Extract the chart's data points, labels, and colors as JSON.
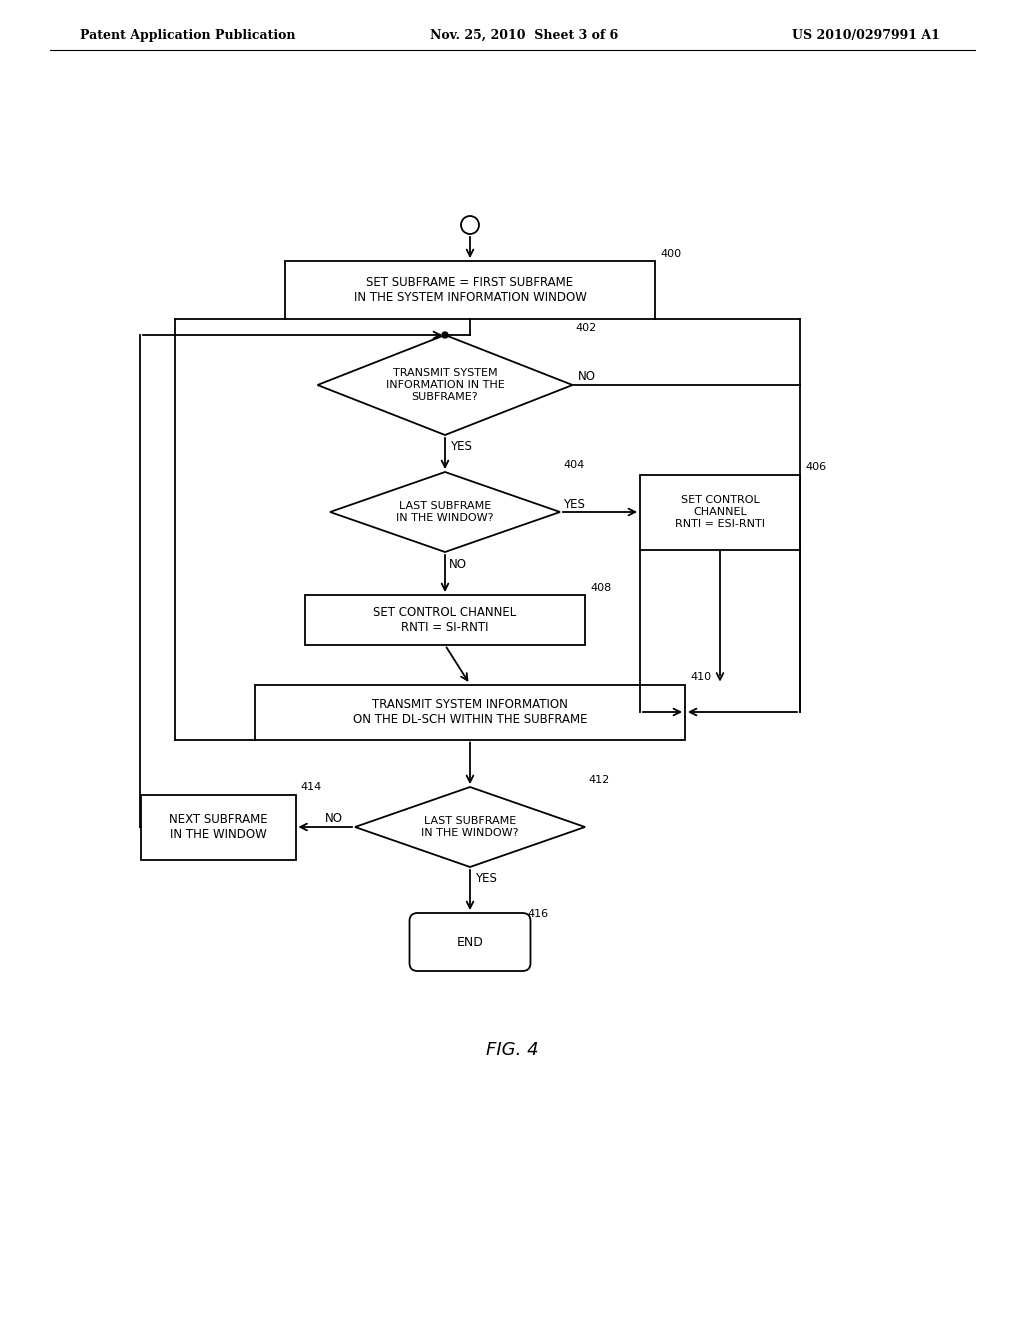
{
  "bg_color": "#ffffff",
  "text_color": "#000000",
  "header_left": "Patent Application Publication",
  "header_center": "Nov. 25, 2010  Sheet 3 of 6",
  "header_right": "US 2010/0297991 A1",
  "fig_label": "FIG. 4",
  "lw": 1.3
}
